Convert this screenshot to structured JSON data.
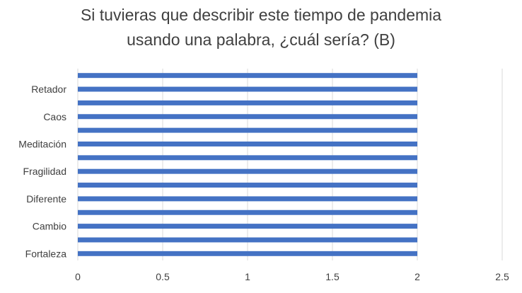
{
  "chart_data": {
    "type": "bar",
    "orientation": "horizontal",
    "title_lines": [
      "Si tuvieras que describir este tiempo de pandemia",
      "usando una palabra, ¿cuál sería? (B)"
    ],
    "categories": [
      "Fortaleza",
      "",
      "Cambio",
      "",
      "Diferente",
      "",
      "Fragilidad",
      "",
      "Meditación",
      "",
      "Caos",
      "",
      "Retador",
      ""
    ],
    "values": [
      2,
      2,
      2,
      2,
      2,
      2,
      2,
      2,
      2,
      2,
      2,
      2,
      2,
      2
    ],
    "x_ticks": [
      "0",
      "0.5",
      "1",
      "1.5",
      "2",
      "2.5"
    ],
    "xlim": [
      0,
      2.5
    ],
    "grid": "vertical",
    "legend": "none",
    "bar_color": "#4472C4",
    "grid_color": "#d9d9d9",
    "text_color": "#404040"
  }
}
